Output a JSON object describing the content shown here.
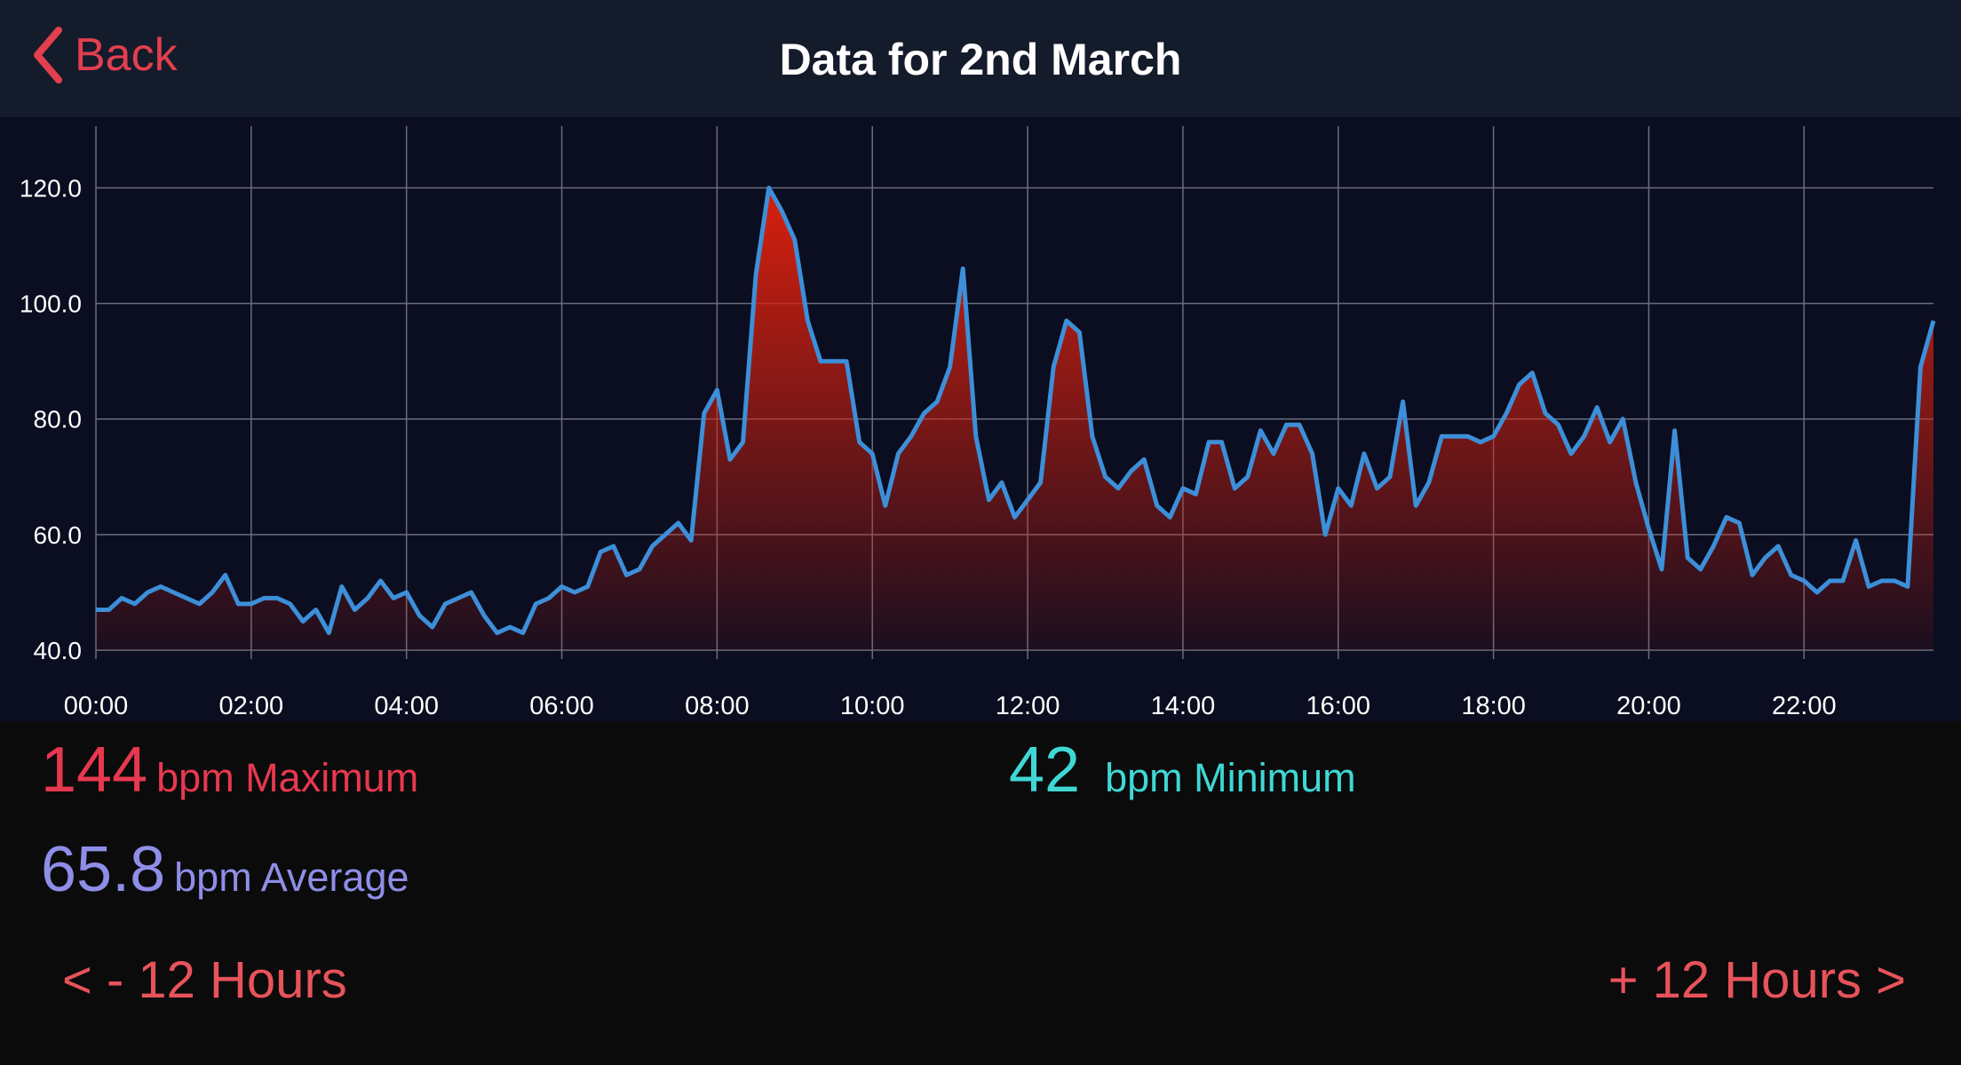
{
  "header": {
    "back": "Back",
    "title": "Data for 2nd March"
  },
  "chart_data": {
    "type": "area",
    "x": [
      0,
      10,
      20,
      30,
      40,
      50,
      60,
      70,
      80,
      90,
      100,
      110,
      120,
      130,
      140,
      150,
      160,
      170,
      180,
      190,
      200,
      210,
      220,
      230,
      240,
      250,
      260,
      270,
      280,
      290,
      300,
      310,
      320,
      330,
      340,
      350,
      360,
      370,
      380,
      390,
      400,
      410,
      420,
      430,
      440,
      450,
      460,
      470,
      480,
      490,
      500,
      510,
      520,
      530,
      540,
      550,
      560,
      570,
      580,
      590,
      600,
      610,
      620,
      630,
      640,
      650,
      660,
      670,
      680,
      690,
      700,
      710,
      720,
      730,
      740,
      750,
      760,
      770,
      780,
      790,
      800,
      810,
      820,
      830,
      840,
      850,
      860,
      870,
      880,
      890,
      900,
      910,
      920,
      930,
      940,
      950,
      960,
      970,
      980,
      990,
      1000,
      1010,
      1020,
      1030,
      1040,
      1050,
      1060,
      1070,
      1080,
      1090,
      1100,
      1110,
      1120,
      1130,
      1140,
      1150,
      1160,
      1170,
      1180,
      1190,
      1200,
      1210,
      1220,
      1230,
      1240,
      1250,
      1260,
      1270,
      1280,
      1290,
      1300,
      1310,
      1320,
      1330,
      1340,
      1350,
      1360,
      1370,
      1380,
      1390,
      1400,
      1410,
      1420
    ],
    "values": [
      47,
      47,
      49,
      48,
      50,
      51,
      50,
      49,
      48,
      50,
      53,
      48,
      48,
      49,
      49,
      48,
      45,
      47,
      43,
      51,
      47,
      49,
      52,
      49,
      50,
      46,
      44,
      48,
      49,
      50,
      46,
      43,
      44,
      43,
      48,
      49,
      51,
      50,
      51,
      57,
      58,
      53,
      54,
      58,
      60,
      62,
      59,
      81,
      85,
      73,
      76,
      105,
      120,
      116,
      111,
      97,
      90,
      90,
      90,
      76,
      74,
      65,
      74,
      77,
      81,
      83,
      89,
      106,
      77,
      66,
      69,
      63,
      66,
      69,
      89,
      97,
      95,
      77,
      70,
      68,
      71,
      73,
      65,
      63,
      68,
      67,
      76,
      76,
      68,
      70,
      78,
      74,
      79,
      79,
      74,
      60,
      68,
      65,
      74,
      68,
      70,
      83,
      65,
      69,
      77,
      77,
      77,
      76,
      77,
      81,
      86,
      88,
      81,
      79,
      74,
      77,
      82,
      76,
      80,
      69,
      61,
      54,
      78,
      56,
      54,
      58,
      63,
      62,
      53,
      56,
      58,
      53,
      52,
      50,
      52,
      52,
      59,
      51,
      52,
      52,
      51,
      89,
      97
    ],
    "line_color": "#3c8fd8",
    "fill_color": "#d8200e",
    "xlim": [
      0,
      1420
    ],
    "xticks": [
      {
        "value": 0,
        "label": "00:00"
      },
      {
        "value": 120,
        "label": "02:00"
      },
      {
        "value": 240,
        "label": "04:00"
      },
      {
        "value": 360,
        "label": "06:00"
      },
      {
        "value": 480,
        "label": "08:00"
      },
      {
        "value": 600,
        "label": "10:00"
      },
      {
        "value": 720,
        "label": "12:00"
      },
      {
        "value": 840,
        "label": "14:00"
      },
      {
        "value": 960,
        "label": "16:00"
      },
      {
        "value": 1080,
        "label": "18:00"
      },
      {
        "value": 1200,
        "label": "20:00"
      },
      {
        "value": 1320,
        "label": "22:00"
      }
    ],
    "ylim": [
      40,
      127.6
    ],
    "yticks": [
      {
        "value": 40,
        "label": "40.0"
      },
      {
        "value": 60,
        "label": "60.0"
      },
      {
        "value": 80,
        "label": "80.0"
      },
      {
        "value": 100,
        "label": "100.0"
      },
      {
        "value": 120,
        "label": "120.0"
      }
    ],
    "grid": true
  },
  "stats": {
    "max": {
      "value": "144",
      "label": "bpm Maximum"
    },
    "min": {
      "value": "42",
      "label": "bpm Minimum"
    },
    "avg": {
      "value": "65.8",
      "label": "bpm Average"
    }
  },
  "nav": {
    "prev": "< - 12 Hours",
    "next": "+ 12 Hours >"
  }
}
